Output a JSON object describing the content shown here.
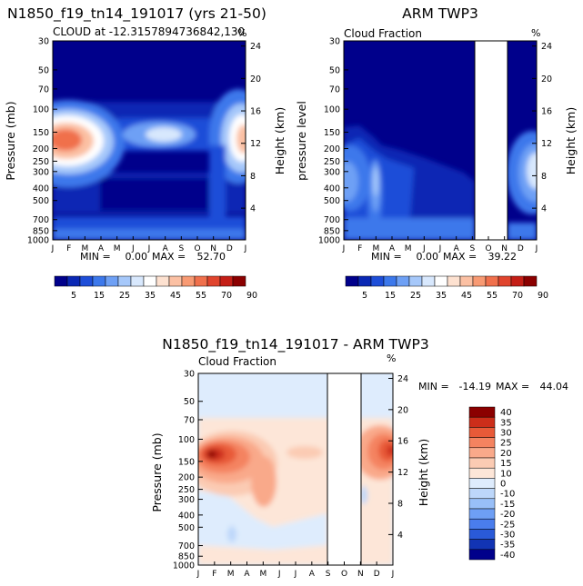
{
  "figure": {
    "months": [
      "J",
      "F",
      "M",
      "A",
      "M",
      "J",
      "J",
      "A",
      "S",
      "O",
      "N",
      "D",
      "J"
    ],
    "pressure_ticks": [
      30,
      50,
      70,
      100,
      150,
      200,
      250,
      300,
      400,
      500,
      700,
      850,
      1000
    ],
    "height_ticks": [
      24,
      20,
      16,
      12,
      8,
      4
    ],
    "ylabel_left": "Pressure (mb)",
    "ylabel_left_alt": "pressure level",
    "ylabel_right": "Height (km)",
    "percent_sign": "%"
  },
  "colors": {
    "cloud_scale": [
      "#00008b",
      "#0a28b4",
      "#1e4ed8",
      "#3c78eb",
      "#6ea0f5",
      "#a6c8fa",
      "#d8e8fd",
      "#ffffff",
      "#fde1d0",
      "#fbc0a3",
      "#f89a73",
      "#f0704c",
      "#e0442d",
      "#c41e16",
      "#8b0000"
    ],
    "diff_scale": [
      "#00008b",
      "#1234b4",
      "#2a5ad8",
      "#4a7ded",
      "#6e9ff5",
      "#98bff8",
      "#bdd7fa",
      "#deecfd",
      "#fde6d8",
      "#fbcbb3",
      "#f9a98a",
      "#f48360",
      "#e85a38",
      "#cc2e1a",
      "#8b0000"
    ]
  },
  "chart_data": [
    {
      "type": "heatmap",
      "title": "N1850_f19_tn14_191017 (yrs 21-50)",
      "subtitle": "CLOUD at -12.3157894736842,130",
      "xlabel": "",
      "ylabel": "Pressure (mb)",
      "y2label": "Height (km)",
      "units": "%",
      "ylim": [
        1000,
        30
      ],
      "stats": {
        "min_label": "MIN =",
        "min": "0.00",
        "max_label": "MAX =",
        "max": "52.70"
      },
      "colorbar_ticks": [
        "5",
        "15",
        "25",
        "35",
        "45",
        "55",
        "70",
        "90"
      ],
      "features": [
        {
          "month": 0.6,
          "pressure": 155,
          "value": 52.7
        },
        {
          "month": 11.7,
          "pressure": 155,
          "value": 48.0
        }
      ]
    },
    {
      "type": "heatmap",
      "title": "ARM TWP3",
      "subtitle": "Cloud Fraction",
      "ylabel": "pressure level",
      "y2label": "Height (km)",
      "units": "%",
      "ylim": [
        1000,
        30
      ],
      "missing_months": [
        "S-N"
      ],
      "stats": {
        "min_label": "MIN =",
        "min": "0.00",
        "max_label": "MAX =",
        "max": "39.22"
      },
      "colorbar_ticks": [
        "5",
        "15",
        "25",
        "35",
        "45",
        "55",
        "70",
        "90"
      ],
      "features": [
        {
          "month": 0.2,
          "pressure": 230,
          "value": 39.2
        },
        {
          "month": 12.0,
          "pressure": 230,
          "value": 38.0
        }
      ]
    },
    {
      "type": "heatmap",
      "title": "N1850_f19_tn14_191017 - ARM TWP3",
      "subtitle": "Cloud Fraction",
      "ylabel": "Pressure (mb)",
      "y2label": "Height (km)",
      "units": "%",
      "ylim": [
        1000,
        30
      ],
      "missing_months": [
        "S-N"
      ],
      "stats": {
        "min_label": "MIN =",
        "min": "-14.19",
        "max_label": "MAX =",
        "max": "44.04"
      },
      "colorbar_ticks": [
        "40",
        "35",
        "30",
        "25",
        "20",
        "15",
        "10",
        "0",
        "-10",
        "-15",
        "-20",
        "-25",
        "-30",
        "-35",
        "-40"
      ],
      "features": [
        {
          "month": 0.6,
          "pressure": 130,
          "value": 44.0
        },
        {
          "month": 12.0,
          "pressure": 130,
          "value": 35.0
        }
      ]
    }
  ]
}
